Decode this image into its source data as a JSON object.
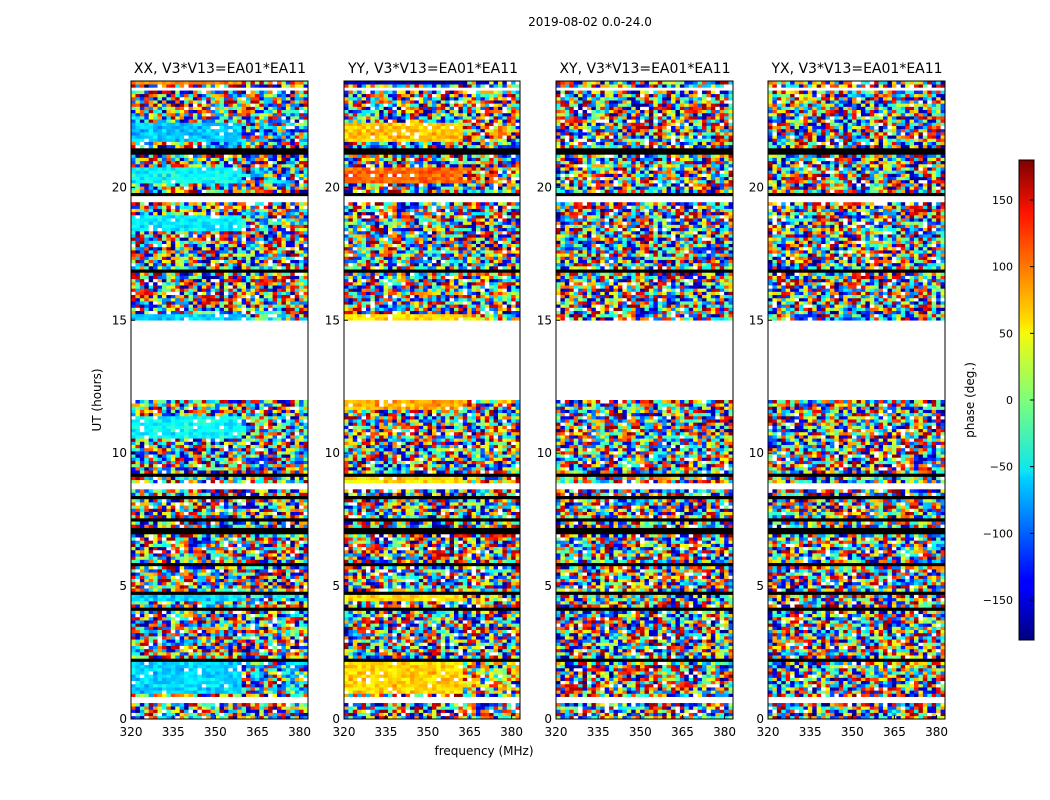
{
  "figure": {
    "title": "2019-08-02 0.0-24.0"
  },
  "colors": {
    "data_gap": "#ffffff",
    "flag_black": "#000000",
    "frame": "#000000"
  },
  "chart_data": [
    {
      "type": "heatmap",
      "title": "XX, V3*V13=EA01*EA11",
      "xlabel": "frequency (MHz)",
      "ylabel": "UT (hours)",
      "xlim": [
        320,
        383
      ],
      "ylim": [
        0,
        24
      ],
      "xticks": [
        320,
        335,
        350,
        365,
        380
      ],
      "yticks": [
        0,
        5,
        10,
        15,
        20
      ],
      "gaps_hours": [
        [
          12.0,
          15.0
        ],
        [
          8.6,
          8.9
        ],
        [
          0.6,
          0.9
        ],
        [
          23.6,
          23.8
        ],
        [
          19.5,
          19.7
        ]
      ],
      "coherent_bands_hours": [
        [
          1.0,
          2.2,
          -60
        ],
        [
          4.4,
          4.7,
          -60
        ],
        [
          10.6,
          11.4,
          -45
        ],
        [
          15.0,
          15.2,
          -60
        ],
        [
          18.4,
          19.0,
          -50
        ],
        [
          20.1,
          20.8,
          -45
        ],
        [
          21.7,
          22.5,
          -65
        ],
        [
          23.9,
          24.0,
          90
        ]
      ],
      "coherent_bandwidth_MHz": [
        320,
        360
      ]
    },
    {
      "type": "heatmap",
      "title": "YY, V3*V13=EA01*EA11",
      "xlim": [
        320,
        383
      ],
      "ylim": [
        0,
        24
      ],
      "xticks": [
        320,
        335,
        350,
        365,
        380
      ],
      "yticks": [
        0,
        5,
        10,
        15,
        20
      ],
      "gaps_hours": [
        [
          12.0,
          15.0
        ],
        [
          8.6,
          8.9
        ],
        [
          0.6,
          0.9
        ],
        [
          23.6,
          23.8
        ],
        [
          19.5,
          19.7
        ]
      ],
      "coherent_bands_hours": [
        [
          1.0,
          2.2,
          60
        ],
        [
          4.4,
          4.7,
          55
        ],
        [
          8.9,
          9.3,
          55
        ],
        [
          11.7,
          12.0,
          75
        ],
        [
          15.0,
          15.2,
          55
        ],
        [
          20.1,
          20.8,
          100
        ],
        [
          21.7,
          22.5,
          65
        ],
        [
          23.9,
          24.0,
          -160
        ]
      ],
      "coherent_bandwidth_MHz": [
        320,
        362
      ]
    },
    {
      "type": "heatmap",
      "title": "XY, V3*V13=EA01*EA11",
      "xlim": [
        320,
        383
      ],
      "ylim": [
        0,
        24
      ],
      "xticks": [
        320,
        335,
        350,
        365,
        380
      ],
      "yticks": [
        0,
        5,
        10,
        15,
        20
      ],
      "gaps_hours": [
        [
          12.0,
          15.0
        ],
        [
          8.6,
          8.9
        ],
        [
          0.6,
          0.9
        ],
        [
          23.6,
          23.8
        ],
        [
          19.5,
          19.7
        ]
      ],
      "coherent_bands_hours": [],
      "coherent_bandwidth_MHz": [
        320,
        383
      ]
    },
    {
      "type": "heatmap",
      "title": "YX, V3*V13=EA01*EA11",
      "xlim": [
        320,
        383
      ],
      "ylim": [
        0,
        24
      ],
      "xticks": [
        320,
        335,
        350,
        365,
        380
      ],
      "yticks": [
        0,
        5,
        10,
        15,
        20
      ],
      "gaps_hours": [
        [
          12.0,
          15.0
        ],
        [
          8.6,
          8.9
        ],
        [
          0.6,
          0.9
        ],
        [
          23.6,
          23.8
        ],
        [
          19.5,
          19.7
        ]
      ],
      "coherent_bands_hours": [],
      "coherent_bandwidth_MHz": [
        320,
        383
      ]
    }
  ],
  "colorbar": {
    "label": "phase (deg.)",
    "range": [
      -180,
      180
    ],
    "ticks": [
      -150,
      -100,
      -50,
      0,
      50,
      100,
      150
    ],
    "tick_labels": [
      "−150",
      "−100",
      "−50",
      "0",
      "50",
      "100",
      "150"
    ],
    "colormap": "jet"
  }
}
